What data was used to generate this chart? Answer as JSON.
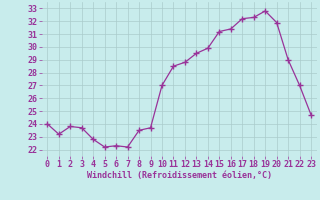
{
  "hours": [
    0,
    1,
    2,
    3,
    4,
    5,
    6,
    7,
    8,
    9,
    10,
    11,
    12,
    13,
    14,
    15,
    16,
    17,
    18,
    19,
    20,
    21,
    22,
    23
  ],
  "values": [
    24.0,
    23.2,
    23.8,
    23.7,
    22.8,
    22.2,
    22.3,
    22.2,
    23.5,
    23.7,
    27.0,
    28.5,
    28.8,
    29.5,
    29.9,
    31.2,
    31.4,
    32.2,
    32.3,
    32.8,
    31.9,
    29.0,
    27.0,
    24.7
  ],
  "line_color": "#993399",
  "marker": "+",
  "marker_size": 4,
  "bg_color": "#c8ecec",
  "grid_color": "#aacccc",
  "ylim": [
    21.5,
    33.5
  ],
  "xlim": [
    -0.5,
    23.5
  ],
  "yticks": [
    22,
    23,
    24,
    25,
    26,
    27,
    28,
    29,
    30,
    31,
    32,
    33
  ],
  "xticks": [
    0,
    1,
    2,
    3,
    4,
    5,
    6,
    7,
    8,
    9,
    10,
    11,
    12,
    13,
    14,
    15,
    16,
    17,
    18,
    19,
    20,
    21,
    22,
    23
  ],
  "xlabel": "Windchill (Refroidissement éolien,°C)",
  "label_fontsize": 6,
  "tick_fontsize": 6
}
